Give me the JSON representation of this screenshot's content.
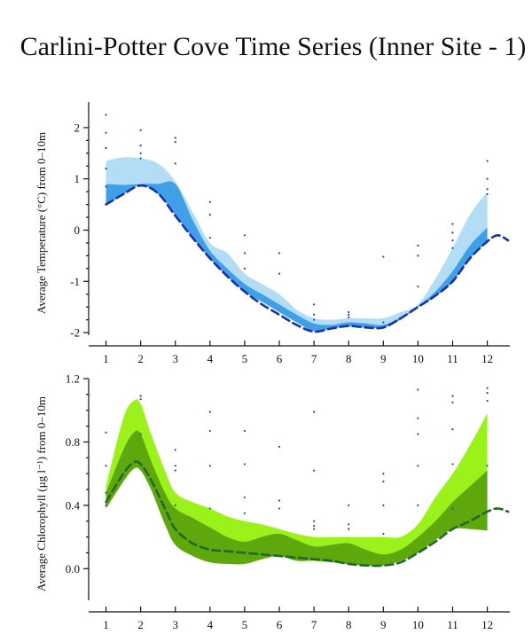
{
  "title": "Carlini-Potter Cove Time Series (Inner Site - 1)",
  "colors": {
    "temp_outer": "#b3dcf5",
    "temp_inner": "#3fa0e8",
    "temp_line": "#1c2eb0",
    "temp_points": "#1f3fd0",
    "chl_outer": "#9af21a",
    "chl_inner": "#5ea80e",
    "chl_line": "#1e6a22",
    "chl_points": "#2b45b5"
  },
  "chart_data": [
    {
      "type": "area",
      "ylabel": "Average Temperature (°C) from 0–10m",
      "x_ticks": [
        1,
        2,
        3,
        4,
        5,
        6,
        7,
        8,
        9,
        10,
        11,
        12
      ],
      "y_ticks": [
        2,
        1,
        0,
        -1,
        -2
      ],
      "xlim": [
        0.5,
        12.65
      ],
      "ylim": [
        -2.05,
        2.5
      ],
      "outer_band": {
        "x": [
          1,
          1.5,
          2,
          2.5,
          3,
          3.5,
          4,
          4.5,
          5,
          5.5,
          6,
          6.5,
          7,
          7.5,
          8,
          8.5,
          9,
          9.5,
          10,
          10.5,
          11,
          11.5,
          12
        ],
        "upper": [
          1.35,
          1.42,
          1.4,
          1.3,
          0.95,
          0.35,
          -0.25,
          -0.45,
          -0.85,
          -1.05,
          -1.25,
          -1.55,
          -1.72,
          -1.75,
          -1.72,
          -1.72,
          -1.72,
          -1.6,
          -1.45,
          -0.95,
          -0.35,
          0.3,
          0.75
        ],
        "lower": [
          0.5,
          0.72,
          0.9,
          0.72,
          0.3,
          -0.15,
          -0.55,
          -0.9,
          -1.2,
          -1.4,
          -1.6,
          -1.8,
          -1.97,
          -1.92,
          -1.88,
          -1.9,
          -1.9,
          -1.75,
          -1.5,
          -1.3,
          -1.0,
          -0.55,
          -0.2
        ]
      },
      "inner_band": {
        "x": [
          1,
          1.5,
          2,
          2.5,
          3,
          3.5,
          4,
          4.5,
          5,
          5.5,
          6,
          6.5,
          7,
          7.5,
          8,
          8.5,
          9,
          9.5,
          10,
          10.5,
          11,
          11.5,
          12
        ],
        "upper": [
          0.9,
          0.88,
          0.9,
          0.9,
          0.9,
          0.2,
          -0.4,
          -0.75,
          -1.05,
          -1.25,
          -1.45,
          -1.65,
          -1.82,
          -1.85,
          -1.8,
          -1.82,
          -1.85,
          -1.7,
          -1.48,
          -1.2,
          -0.8,
          -0.3,
          0.05
        ],
        "lower": [
          0.48,
          0.7,
          0.88,
          0.7,
          0.3,
          -0.15,
          -0.55,
          -0.9,
          -1.2,
          -1.4,
          -1.6,
          -1.8,
          -1.97,
          -1.92,
          -1.88,
          -1.9,
          -1.9,
          -1.75,
          -1.5,
          -1.3,
          -1.0,
          -0.55,
          -0.22
        ]
      },
      "mean_line": {
        "x": [
          1,
          1.5,
          2,
          2.5,
          3,
          3.5,
          4,
          4.5,
          5,
          5.5,
          6,
          6.5,
          7,
          7.5,
          8,
          8.5,
          9,
          9.5,
          10,
          10.5,
          11,
          11.5,
          12,
          12.3,
          12.6
        ],
        "y": [
          0.5,
          0.7,
          0.87,
          0.72,
          0.28,
          -0.15,
          -0.55,
          -0.9,
          -1.2,
          -1.45,
          -1.65,
          -1.85,
          -1.98,
          -1.92,
          -1.87,
          -1.9,
          -1.9,
          -1.72,
          -1.5,
          -1.28,
          -1.0,
          -0.55,
          -0.22,
          -0.1,
          -0.2
        ]
      },
      "points": {
        "x": [
          1,
          1,
          1,
          1,
          1,
          1,
          2,
          2,
          2,
          2,
          3,
          3,
          3,
          4,
          4,
          4,
          5,
          5,
          5,
          6,
          6,
          7,
          7,
          7,
          8,
          8,
          8,
          9,
          9,
          10,
          10,
          10,
          11,
          11,
          11,
          11,
          12,
          12,
          12,
          12
        ],
        "y": [
          2.25,
          1.9,
          1.6,
          1.2,
          0.85,
          0.5,
          1.95,
          1.65,
          1.5,
          1.4,
          1.8,
          1.72,
          1.3,
          0.55,
          0.3,
          -0.15,
          -0.1,
          -0.45,
          -0.75,
          -0.45,
          -0.85,
          -1.45,
          -1.65,
          -1.75,
          -1.6,
          -1.65,
          -1.7,
          -0.52,
          -1.8,
          -0.3,
          -0.5,
          -1.1,
          0.12,
          -0.05,
          -0.2,
          -0.35,
          1.35,
          1.0,
          0.8,
          0.7
        ]
      }
    },
    {
      "type": "area",
      "ylabel": "Average Chlorophyll (μg l⁻¹) from 0–10m",
      "x_ticks": [
        1,
        2,
        3,
        4,
        5,
        6,
        7,
        8,
        9,
        10,
        11,
        12
      ],
      "y_tick_labels": [
        "1.2",
        "0.8",
        "0.4",
        "0.0"
      ],
      "y_ticks": [
        1.2,
        0.8,
        0.4,
        0.0
      ],
      "xlim": [
        0.5,
        12.65
      ],
      "ylim": [
        -0.2,
        1.2
      ],
      "outer_band": {
        "x": [
          1,
          1.5,
          1.8,
          2,
          2.3,
          2.7,
          3,
          3.5,
          4,
          4.5,
          5,
          5.5,
          6,
          6.5,
          7,
          7.5,
          8,
          8.5,
          9,
          9.5,
          10,
          10.5,
          11,
          11.5,
          12
        ],
        "upper": [
          0.52,
          0.95,
          1.06,
          1.04,
          0.85,
          0.62,
          0.48,
          0.42,
          0.38,
          0.33,
          0.3,
          0.28,
          0.25,
          0.22,
          0.2,
          0.2,
          0.2,
          0.2,
          0.2,
          0.2,
          0.28,
          0.45,
          0.6,
          0.78,
          0.98
        ],
        "lower": [
          0.38,
          0.55,
          0.63,
          0.62,
          0.5,
          0.28,
          0.15,
          0.08,
          0.04,
          0.03,
          0.03,
          0.06,
          0.08,
          0.05,
          0.05,
          0.04,
          0.03,
          0.02,
          0.02,
          0.05,
          0.1,
          0.18,
          0.25,
          0.25,
          0.24
        ]
      },
      "inner_band": {
        "x": [
          1,
          1.5,
          1.8,
          2,
          2.3,
          2.7,
          3,
          3.5,
          4,
          4.5,
          5,
          5.5,
          6,
          6.5,
          7,
          7.5,
          8,
          8.5,
          9,
          9.5,
          10,
          10.5,
          11,
          11.5,
          12
        ],
        "upper": [
          0.48,
          0.75,
          0.86,
          0.85,
          0.68,
          0.48,
          0.38,
          0.32,
          0.26,
          0.2,
          0.17,
          0.2,
          0.22,
          0.18,
          0.14,
          0.15,
          0.16,
          0.12,
          0.09,
          0.12,
          0.2,
          0.3,
          0.42,
          0.52,
          0.62
        ],
        "lower": [
          0.38,
          0.55,
          0.63,
          0.62,
          0.5,
          0.28,
          0.15,
          0.08,
          0.04,
          0.03,
          0.03,
          0.06,
          0.08,
          0.05,
          0.05,
          0.04,
          0.03,
          0.02,
          0.02,
          0.05,
          0.1,
          0.18,
          0.25,
          0.25,
          0.24
        ]
      },
      "mean_line": {
        "x": [
          1,
          1.5,
          1.8,
          2,
          2.3,
          2.7,
          3,
          3.5,
          4,
          4.5,
          5,
          5.5,
          6,
          6.5,
          7,
          7.5,
          8,
          8.5,
          9,
          9.5,
          10,
          10.5,
          11,
          11.5,
          12,
          12.3,
          12.6
        ],
        "y": [
          0.42,
          0.6,
          0.67,
          0.66,
          0.56,
          0.38,
          0.25,
          0.16,
          0.12,
          0.11,
          0.1,
          0.09,
          0.08,
          0.07,
          0.06,
          0.05,
          0.03,
          0.02,
          0.02,
          0.04,
          0.1,
          0.17,
          0.25,
          0.3,
          0.36,
          0.38,
          0.36
        ]
      },
      "points": {
        "x": [
          1,
          1,
          1,
          1,
          2,
          2,
          2,
          3,
          3,
          3,
          3,
          4,
          4,
          4,
          4,
          5,
          5,
          5,
          5,
          6,
          6,
          6,
          7,
          7,
          7,
          7,
          7,
          8,
          8,
          8,
          9,
          9,
          9,
          9,
          10,
          10,
          10,
          10,
          10,
          11,
          11,
          11,
          11,
          11,
          12,
          12,
          12,
          12
        ],
        "y": [
          0.86,
          0.65,
          0.48,
          0.4,
          1.09,
          1.07,
          0.85,
          0.75,
          0.65,
          0.62,
          0.4,
          0.99,
          0.87,
          0.65,
          0.38,
          0.87,
          0.66,
          0.45,
          0.35,
          0.77,
          0.43,
          0.38,
          0.99,
          0.62,
          0.3,
          0.27,
          0.25,
          0.4,
          0.28,
          0.25,
          0.6,
          0.55,
          0.4,
          0.22,
          1.13,
          0.95,
          0.85,
          0.65,
          0.4,
          1.09,
          1.05,
          0.88,
          0.66,
          0.38,
          1.14,
          1.11,
          1.06,
          0.65
        ]
      }
    }
  ]
}
